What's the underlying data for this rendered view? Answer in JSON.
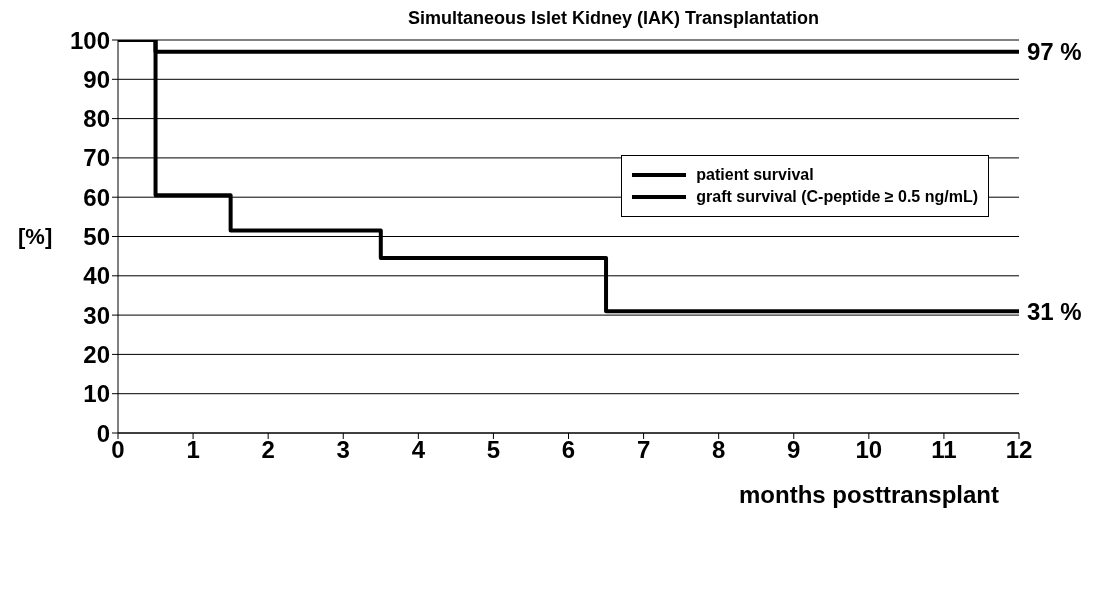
{
  "chart_data": {
    "type": "step",
    "title": "Simultaneous Islet Kidney (IAK) Transplantation",
    "xlabel": "months posttransplant",
    "ylabel": "[%]",
    "x": [
      0,
      1,
      2,
      3,
      4,
      5,
      6,
      7,
      8,
      9,
      10,
      11,
      12
    ],
    "series": [
      {
        "name": "patient survival",
        "color": "#000000",
        "values": [
          100,
          97,
          97,
          97,
          97,
          97,
          97,
          97,
          97,
          97,
          97,
          97,
          97
        ]
      },
      {
        "name": "graft survival (C-peptide ≥ 0.5 ng/mL)",
        "color": "#000000",
        "values": [
          100,
          60.5,
          51.5,
          51.5,
          44.5,
          44.5,
          44.5,
          31,
          31,
          31,
          31,
          31,
          31
        ]
      }
    ],
    "xlim": [
      0,
      12
    ],
    "xticks": [
      0,
      1,
      2,
      3,
      4,
      5,
      6,
      7,
      8,
      9,
      10,
      11,
      12
    ],
    "ylim": [
      0,
      100
    ],
    "yticks": [
      0,
      10,
      20,
      30,
      40,
      50,
      60,
      70,
      80,
      90,
      100
    ],
    "grid": "y",
    "legend": "top right",
    "annotations": [
      {
        "text": "97 %",
        "x": 12,
        "y": 97
      },
      {
        "text": "31 %",
        "x": 12,
        "y": 31
      }
    ]
  }
}
